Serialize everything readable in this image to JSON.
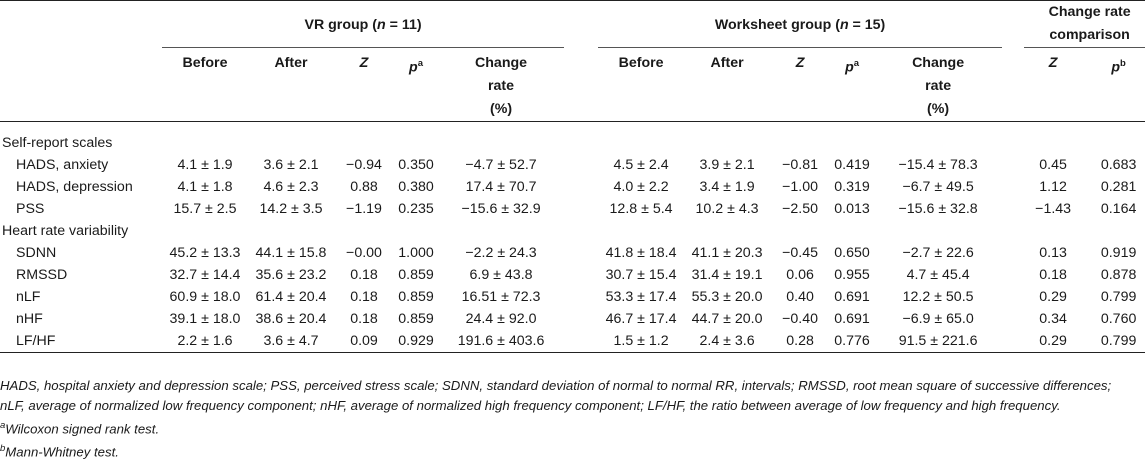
{
  "groups": {
    "vr": {
      "title_prefix": "VR group (",
      "n": "n",
      "title_suffix": " = 11)"
    },
    "ws": {
      "title_prefix": "Worksheet group (",
      "n": "n",
      "title_suffix": " = 15)"
    },
    "cmp": {
      "line1": "Change rate",
      "line2": "comparison"
    }
  },
  "subheaders": {
    "before": "Before",
    "after": "After",
    "z": "Z",
    "p": "p",
    "sup_a": "a",
    "sup_b": "b",
    "change1": "Change",
    "change2": "rate",
    "change3": "(%)"
  },
  "sections": {
    "self": "Self-report scales",
    "hrv": "Heart rate variability"
  },
  "rows": [
    {
      "label": "HADS, anxiety",
      "vr_before": "4.1 ± 1.9",
      "vr_after": "3.6 ± 2.1",
      "vr_z": "−0.94",
      "vr_p": "0.350",
      "vr_cr": "−4.7 ± 52.7",
      "ws_before": "4.5 ± 2.4",
      "ws_after": "3.9 ± 2.1",
      "ws_z": "−0.81",
      "ws_p": "0.419",
      "ws_cr": "−15.4 ± 78.3",
      "cmp_z": "0.45",
      "cmp_p": "0.683"
    },
    {
      "label": "HADS, depression",
      "vr_before": "4.1 ± 1.8",
      "vr_after": "4.6 ± 2.3",
      "vr_z": "0.88",
      "vr_p": "0.380",
      "vr_cr": "17.4 ± 70.7",
      "ws_before": "4.0 ± 2.2",
      "ws_after": "3.4 ± 1.9",
      "ws_z": "−1.00",
      "ws_p": "0.319",
      "ws_cr": "−6.7 ± 49.5",
      "cmp_z": "1.12",
      "cmp_p": "0.281"
    },
    {
      "label": "PSS",
      "vr_before": "15.7 ± 2.5",
      "vr_after": "14.2 ± 3.5",
      "vr_z": "−1.19",
      "vr_p": "0.235",
      "vr_cr": "−15.6 ± 32.9",
      "ws_before": "12.8 ± 5.4",
      "ws_after": "10.2 ± 4.3",
      "ws_z": "−2.50",
      "ws_p": "0.013",
      "ws_cr": "−15.6 ± 32.8",
      "cmp_z": "−1.43",
      "cmp_p": "0.164"
    },
    {
      "label": "SDNN",
      "vr_before": "45.2 ± 13.3",
      "vr_after": "44.1 ± 15.8",
      "vr_z": "−0.00",
      "vr_p": "1.000",
      "vr_cr": "−2.2 ± 24.3",
      "ws_before": "41.8 ± 18.4",
      "ws_after": "41.1 ± 20.3",
      "ws_z": "−0.45",
      "ws_p": "0.650",
      "ws_cr": "−2.7 ± 22.6",
      "cmp_z": "0.13",
      "cmp_p": "0.919"
    },
    {
      "label": "RMSSD",
      "vr_before": "32.7 ± 14.4",
      "vr_after": "35.6 ± 23.2",
      "vr_z": "0.18",
      "vr_p": "0.859",
      "vr_cr": "6.9 ± 43.8",
      "ws_before": "30.7 ± 15.4",
      "ws_after": "31.4 ± 19.1",
      "ws_z": "0.06",
      "ws_p": "0.955",
      "ws_cr": "4.7 ± 45.4",
      "cmp_z": "0.18",
      "cmp_p": "0.878"
    },
    {
      "label": "nLF",
      "vr_before": "60.9 ± 18.0",
      "vr_after": "61.4 ± 20.4",
      "vr_z": "0.18",
      "vr_p": "0.859",
      "vr_cr": "16.51 ± 72.3",
      "ws_before": "53.3 ± 17.4",
      "ws_after": "55.3 ± 20.0",
      "ws_z": "0.40",
      "ws_p": "0.691",
      "ws_cr": "12.2 ± 50.5",
      "cmp_z": "0.29",
      "cmp_p": "0.799"
    },
    {
      "label": "nHF",
      "vr_before": "39.1 ± 18.0",
      "vr_after": "38.6 ± 20.4",
      "vr_z": "0.18",
      "vr_p": "0.859",
      "vr_cr": "24.4 ± 92.0",
      "ws_before": "46.7 ± 17.4",
      "ws_after": "44.7 ± 20.0",
      "ws_z": "−0.40",
      "ws_p": "0.691",
      "ws_cr": "−6.9 ± 65.0",
      "cmp_z": "0.34",
      "cmp_p": "0.760"
    },
    {
      "label": "LF/HF",
      "vr_before": "2.2 ± 1.6",
      "vr_after": "3.6 ± 4.7",
      "vr_z": "0.09",
      "vr_p": "0.929",
      "vr_cr": "191.6 ± 403.6",
      "ws_before": "1.5 ± 1.2",
      "ws_after": "2.4 ± 3.6",
      "ws_z": "0.28",
      "ws_p": "0.776",
      "ws_cr": "91.5 ± 221.6",
      "cmp_z": "0.29",
      "cmp_p": "0.799"
    }
  ],
  "footnotes": {
    "abbrev": "HADS, hospital anxiety and depression scale; PSS, perceived stress scale; SDNN, standard deviation of normal to normal RR, intervals; RMSSD, root mean square of successive differences; nLF, average of normalized low frequency component; nHF, average of normalized high frequency component; LF/HF, the ratio between average of low frequency and high frequency.",
    "a_sup": "a",
    "a_text": "Wilcoxon signed rank test.",
    "b_sup": "b",
    "b_text": "Mann-Whitney test."
  }
}
